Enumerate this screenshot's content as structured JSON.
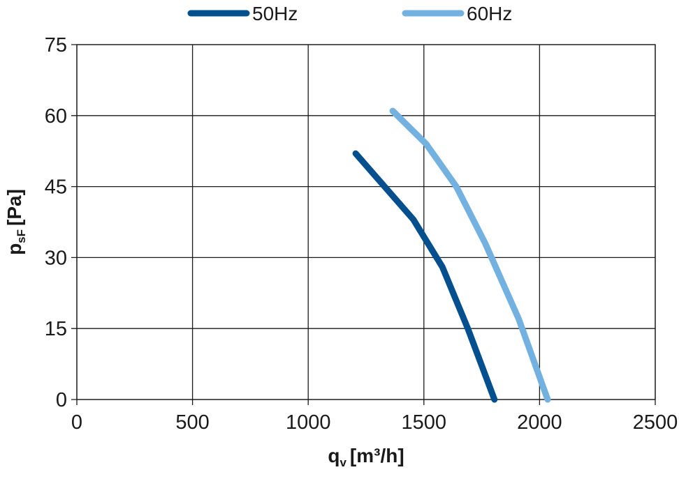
{
  "chart_data": {
    "type": "line",
    "xlabel": {
      "main": "q",
      "sub": "v",
      "unit": "[m³/h]"
    },
    "ylabel": {
      "main": "p",
      "sub": "sF",
      "unit": "[Pa]"
    },
    "xlim": [
      0,
      2500
    ],
    "ylim": [
      0,
      75
    ],
    "xticks": [
      0,
      500,
      1000,
      1500,
      2000,
      2500
    ],
    "yticks": [
      0,
      15,
      30,
      45,
      60,
      75
    ],
    "grid": true,
    "legend_position": "top-center",
    "series": [
      {
        "name": "50Hz",
        "color": "#04508f",
        "x": [
          1205,
          1330,
          1455,
          1580,
          1690,
          1805
        ],
        "y": [
          52,
          45,
          38,
          28,
          15,
          0
        ]
      },
      {
        "name": "60Hz",
        "color": "#73b1e1",
        "x": [
          1365,
          1510,
          1640,
          1765,
          1910,
          2035
        ],
        "y": [
          61,
          54,
          45,
          33,
          17,
          0
        ]
      }
    ]
  }
}
